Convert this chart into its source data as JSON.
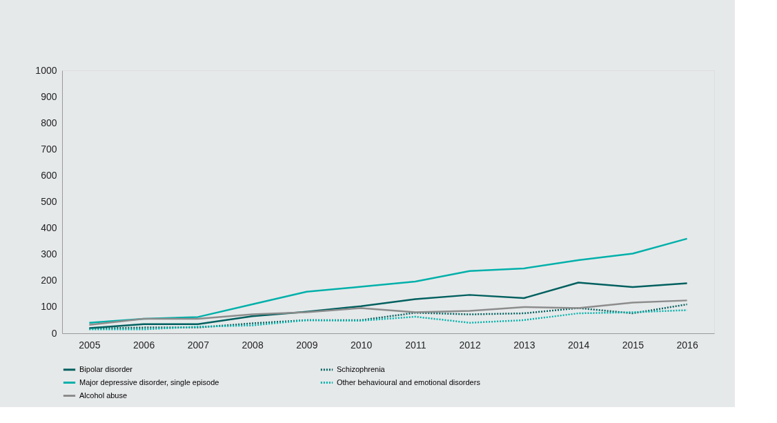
{
  "chart_data": {
    "type": "line",
    "categories": [
      "2005",
      "2006",
      "2007",
      "2008",
      "2009",
      "2010",
      "2011",
      "2012",
      "2013",
      "2014",
      "2015",
      "2016"
    ],
    "series": [
      {
        "name": "Bipolar disorder",
        "color": "#00605f",
        "line_style": "solid",
        "values": [
          20,
          35,
          35,
          65,
          82,
          103,
          130,
          146,
          134,
          193,
          176,
          190
        ]
      },
      {
        "name": "Schizophrenia",
        "color": "#00605f",
        "line_style": "dotted",
        "values": [
          18,
          22,
          22,
          38,
          50,
          50,
          78,
          72,
          76,
          96,
          76,
          110
        ]
      },
      {
        "name": "Major depressive disorder, single episode",
        "color": "#00b0aa",
        "line_style": "solid",
        "values": [
          40,
          55,
          62,
          110,
          158,
          177,
          197,
          237,
          247,
          278,
          303,
          360
        ]
      },
      {
        "name": "Other behavioural and emotional disorders",
        "color": "#00b0aa",
        "line_style": "dotted",
        "values": [
          15,
          15,
          25,
          30,
          50,
          48,
          63,
          40,
          50,
          76,
          80,
          88
        ]
      },
      {
        "name": "Alcohol abuse",
        "color": "#8c8c8c",
        "line_style": "solid",
        "values": [
          32,
          55,
          55,
          72,
          80,
          96,
          80,
          85,
          100,
          96,
          117,
          125
        ]
      }
    ],
    "ylim": [
      0,
      1000
    ],
    "yticks": [
      0,
      100,
      200,
      300,
      400,
      500,
      600,
      700,
      800,
      900,
      1000
    ],
    "grid": false,
    "legend": "bottom",
    "marker": "none"
  }
}
